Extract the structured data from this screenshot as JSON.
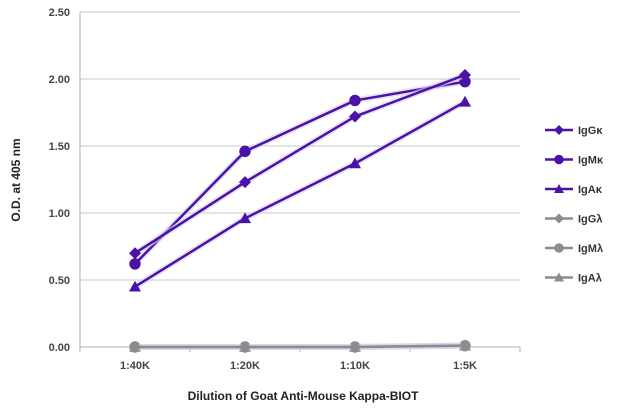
{
  "chart_data": {
    "type": "line",
    "xlabel": "Dilution of Goat Anti-Mouse Kappa-BIOT",
    "ylabel": "O.D. at 405 nm",
    "categories": [
      "1:40K",
      "1:20K",
      "1:10K",
      "1:5K"
    ],
    "ylim": [
      0,
      2.5
    ],
    "yticks": [
      "0.00",
      "0.50",
      "1.00",
      "1.50",
      "2.00",
      "2.50"
    ],
    "grid": true,
    "legend_position": "right",
    "series": [
      {
        "name": "IgGκ",
        "values": [
          0.7,
          1.23,
          1.72,
          2.03
        ],
        "color": "#4b12a8",
        "marker": "diamond"
      },
      {
        "name": "IgMκ",
        "values": [
          0.62,
          1.46,
          1.84,
          1.98
        ],
        "color": "#4b12a8",
        "marker": "circle"
      },
      {
        "name": "IgAκ",
        "values": [
          0.45,
          0.96,
          1.37,
          1.83
        ],
        "color": "#4b12a8",
        "marker": "triangle"
      },
      {
        "name": "IgGλ",
        "values": [
          0.0,
          0.0,
          0.0,
          0.01
        ],
        "color": "#8c8c8c",
        "marker": "diamond"
      },
      {
        "name": "IgMλ",
        "values": [
          0.0,
          0.0,
          0.0,
          0.01
        ],
        "color": "#8c8c8c",
        "marker": "circle"
      },
      {
        "name": "IgAλ",
        "values": [
          0.0,
          0.0,
          0.0,
          0.01
        ],
        "color": "#8c8c8c",
        "marker": "triangle"
      }
    ]
  }
}
